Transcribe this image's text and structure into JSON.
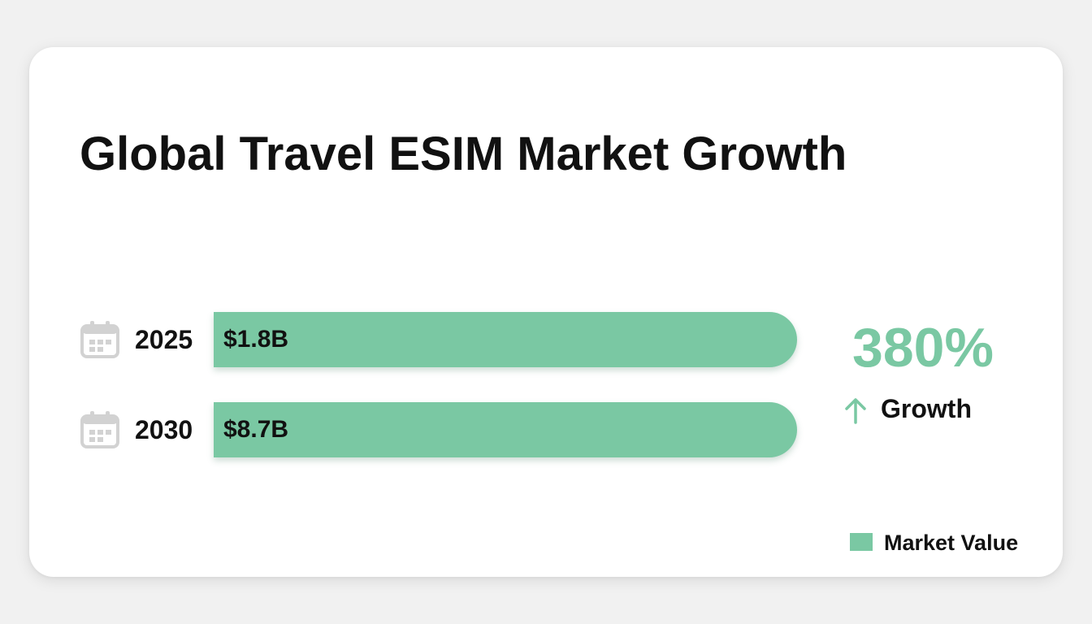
{
  "chart_data": {
    "type": "bar",
    "orientation": "horizontal",
    "title": "Global Travel ESIM Market Growth",
    "categories": [
      "2025",
      "2030"
    ],
    "series": [
      {
        "name": "Market Value",
        "values": [
          1.8,
          8.7
        ],
        "value_labels": [
          "$1.8B",
          "$8.7B"
        ]
      }
    ],
    "bar_fill": [
      1.0,
      1.0
    ],
    "legend": {
      "position": "bottom-right",
      "entries": [
        "Market Value"
      ]
    },
    "annotation": {
      "value": "380%",
      "label": "Growth",
      "icon": "arrow-up-icon"
    },
    "grid": false,
    "colors": {
      "bar": "#7ac8a3",
      "accent": "#7ac8a3",
      "icon": "#d2d2d2",
      "text": "#111111"
    },
    "row_icon": "calendar-icon"
  }
}
